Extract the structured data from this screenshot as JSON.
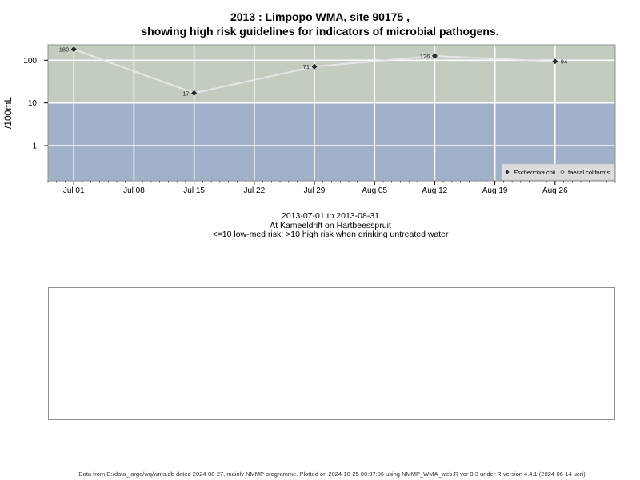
{
  "header": {
    "title_line1": "2013 : Limpopo WMA, site 90175 ,",
    "title_line2": "showing high risk guidelines for indicators of microbial pathogens."
  },
  "subtitle": {
    "date_range": "2013-07-01 to 2013-08-31",
    "location": "At Kameeldrift on Hartbeesspruit",
    "risk_note": "<=10 low-med risk; >10 high risk when drinking untreated water"
  },
  "footer": {
    "text": "Data from D:/data_large/wq/wms.db dated 2024-08-27, mainly NMMP programme. Plotted on 2024-10-25 00:37:06 using NMMP_WMA_web.R ver 9.3 under R version 4.4.1 (2024-06-14 ucrt)"
  },
  "chart_data": {
    "type": "line",
    "ylabel": "/100mL",
    "yscale": "log",
    "ylim": [
      0.15,
      230
    ],
    "xlim": [
      "2013-06-28",
      "2013-09-02"
    ],
    "y_ticks": [
      {
        "value": 1,
        "label": "1"
      },
      {
        "value": 10,
        "label": "10"
      },
      {
        "value": 100,
        "label": "100"
      }
    ],
    "x_ticks": [
      {
        "date": "2013-07-01",
        "label": "Jul 01"
      },
      {
        "date": "2013-07-08",
        "label": "Jul 08"
      },
      {
        "date": "2013-07-15",
        "label": "Jul 15"
      },
      {
        "date": "2013-07-22",
        "label": "Jul 22"
      },
      {
        "date": "2013-07-29",
        "label": "Jul 29"
      },
      {
        "date": "2013-08-05",
        "label": "Aug 05"
      },
      {
        "date": "2013-08-12",
        "label": "Aug 12"
      },
      {
        "date": "2013-08-19",
        "label": "Aug 19"
      },
      {
        "date": "2013-08-26",
        "label": "Aug 26"
      }
    ],
    "guideline": {
      "value": 10
    },
    "grid": true,
    "legend_position": "bottom-right",
    "series": [
      {
        "name": "Escherichia coli",
        "marker": "filled-diamond",
        "color": "#2b2b2b",
        "points": [
          {
            "date": "2013-07-01",
            "value": 180,
            "label": "180"
          },
          {
            "date": "2013-07-15",
            "value": 17,
            "label": "17"
          },
          {
            "date": "2013-07-29",
            "value": 71,
            "label": "71"
          },
          {
            "date": "2013-08-12",
            "value": 126,
            "label": "126"
          },
          {
            "date": "2013-08-26",
            "value": 94,
            "label": "94"
          }
        ]
      },
      {
        "name": "faecal coliforms",
        "marker": "open-diamond",
        "color": "#444444",
        "points": []
      }
    ],
    "colors": {
      "high_risk_band": "#c2cdc0",
      "low_risk_band": "#a1b1c9",
      "connector_line": "#e6e6e6",
      "grid_line": "#ffffff"
    }
  }
}
